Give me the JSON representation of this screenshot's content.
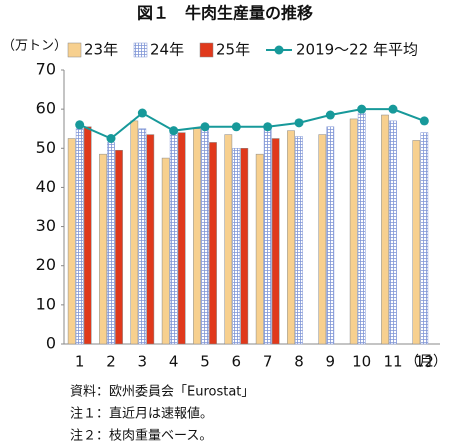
{
  "chart_data": {
    "type": "bar",
    "title": "図１　牛肉生産量の推移",
    "y_label": "（万トン）",
    "x_label": "（月）",
    "categories": [
      "1",
      "2",
      "3",
      "4",
      "5",
      "6",
      "7",
      "8",
      "9",
      "10",
      "11",
      "12"
    ],
    "series": [
      {
        "name": "23年",
        "type": "bar",
        "color": "#f7d08f",
        "values": [
          52.5,
          48.5,
          57,
          47.5,
          55,
          53.5,
          48.5,
          54.5,
          53.5,
          57.5,
          58.5,
          52
        ]
      },
      {
        "name": "24年",
        "type": "bar",
        "color": "#7f95d6",
        "hatched": true,
        "values": [
          55,
          51.5,
          55,
          55,
          55.5,
          50,
          55.5,
          53,
          55.5,
          59,
          57,
          54
        ]
      },
      {
        "name": "25年",
        "type": "bar",
        "color": "#e0391c",
        "values": [
          55.5,
          49.5,
          53.5,
          54,
          51.5,
          50,
          52.5,
          null,
          null,
          null,
          null,
          null
        ]
      },
      {
        "name": "2019～22 年平均",
        "type": "line",
        "color": "#17999a",
        "values": [
          56,
          52.5,
          59,
          54.5,
          55.5,
          55.5,
          55.5,
          56.5,
          58.5,
          60,
          60,
          57
        ]
      }
    ],
    "ylim": [
      0,
      70
    ],
    "yticks": [
      0,
      10,
      20,
      30,
      40,
      50,
      60,
      70
    ],
    "grid": false,
    "notes": [
      "資料：欧州委員会「Eurostat」",
      "注１：直近月は速報値。",
      "注２：枝肉重量ベース。"
    ]
  }
}
